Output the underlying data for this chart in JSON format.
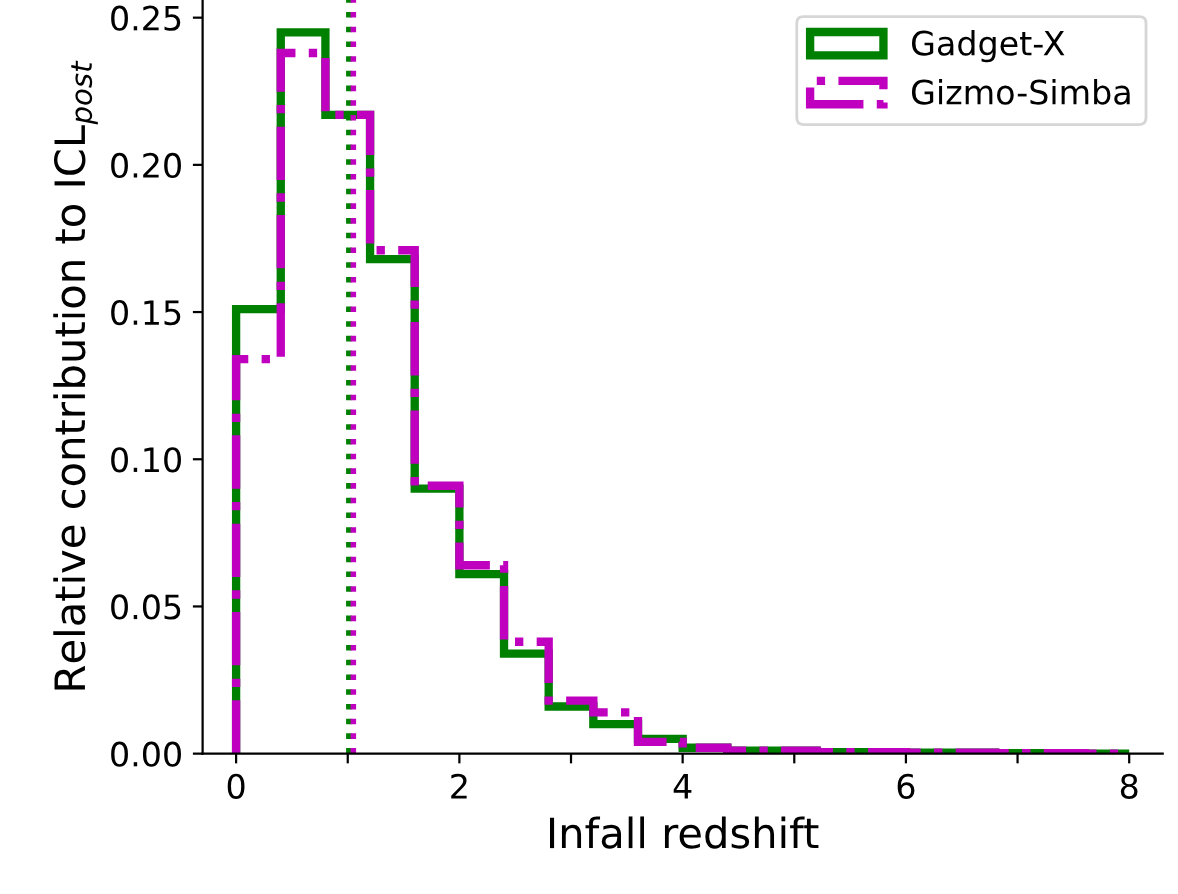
{
  "chart_data": {
    "type": "histogram",
    "xlabel": "Infall redshift",
    "ylabel": "Relative contribution to ICL$_{post}$",
    "bins": [
      0,
      0.4,
      0.8,
      1.2,
      1.6,
      2.0,
      2.4,
      2.8,
      3.2,
      3.6,
      4.0,
      4.4,
      4.8,
      5.2,
      5.6,
      6.0,
      6.4,
      6.8,
      7.2,
      7.6,
      8.0
    ],
    "series": [
      {
        "name": "Gadget-X",
        "color": "#008000",
        "line_style": "solid",
        "values": [
          0.151,
          0.245,
          0.217,
          0.168,
          0.09,
          0.061,
          0.034,
          0.016,
          0.01,
          0.005,
          0.002,
          0.001,
          0.001,
          0.0005,
          0.0005,
          0.0003,
          0.0003,
          0.0002,
          0.0002,
          0.0
        ]
      },
      {
        "name": "Gizmo-Simba",
        "color": "#bf00bf",
        "line_style": "dashdot",
        "values": [
          0.134,
          0.238,
          0.217,
          0.171,
          0.091,
          0.064,
          0.038,
          0.018,
          0.014,
          0.004,
          0.002,
          0.001,
          0.001,
          0.0005,
          0.0005,
          0.0003,
          0.0003,
          0.0002,
          0.0002,
          0.0
        ]
      }
    ],
    "ref_lines": [
      {
        "axis": "x",
        "value": 1.01,
        "color": "#008000",
        "line_style": "dotted"
      },
      {
        "axis": "x",
        "value": 1.05,
        "color": "#bf00bf",
        "line_style": "dotted"
      }
    ],
    "xlim": [
      -0.3,
      8.3
    ],
    "ylim": [
      0,
      0.256
    ],
    "xticks": [
      0,
      {
        "value": 1,
        "label": null
      },
      2,
      {
        "value": 3,
        "label": null
      },
      4,
      {
        "value": 5,
        "label": null
      },
      6,
      {
        "value": 7,
        "label": null
      },
      8
    ],
    "yticks": [
      {
        "value": 0,
        "label": "0.00"
      },
      {
        "value": 0.05,
        "label": "0.05"
      },
      {
        "value": 0.1,
        "label": "0.10"
      },
      {
        "value": 0.15,
        "label": "0.15"
      },
      {
        "value": 0.2,
        "label": "0.20"
      },
      {
        "value": 0.25,
        "label": "0.25"
      }
    ],
    "legend": "top right",
    "grid": false
  }
}
